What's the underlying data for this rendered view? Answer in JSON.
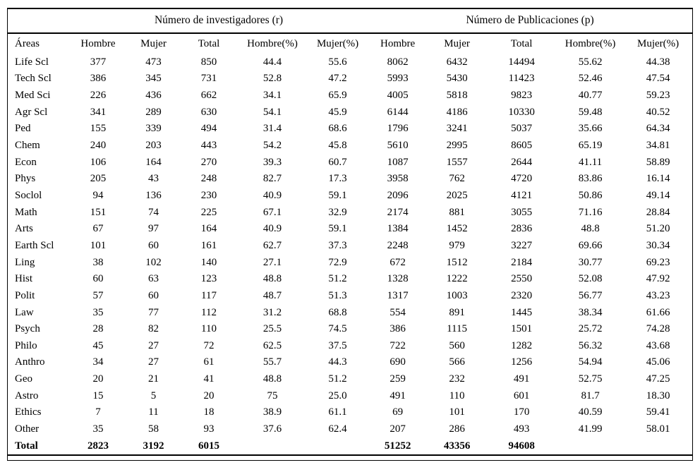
{
  "table": {
    "group_headers": {
      "investigadores": "Número de investigadores (r)",
      "publicaciones": "Número de Publicaciones (p)"
    },
    "columns": {
      "area": "Áreas",
      "r_hombre": "Hombre",
      "r_mujer": "Mujer",
      "r_total": "Total",
      "r_hombre_pct": "Hombre(%)",
      "r_mujer_pct": "Mujer(%)",
      "p_hombre": "Hombre",
      "p_mujer": "Mujer",
      "p_total": "Total",
      "p_hombre_pct": "Hombre(%)",
      "p_mujer_pct": "Mujer(%)"
    },
    "rows": [
      {
        "area": "Life Scl",
        "cells": [
          "377",
          "473",
          "850",
          "44.4",
          "55.6",
          "8062",
          "6432",
          "14494",
          "55.62",
          "44.38"
        ],
        "bold": false
      },
      {
        "area": "Tech Scl",
        "cells": [
          "386",
          "345",
          "731",
          "52.8",
          "47.2",
          "5993",
          "5430",
          "11423",
          "52.46",
          "47.54"
        ],
        "bold": false
      },
      {
        "area": "Med Sci",
        "cells": [
          "226",
          "436",
          "662",
          "34.1",
          "65.9",
          "4005",
          "5818",
          "9823",
          "40.77",
          "59.23"
        ],
        "bold": false
      },
      {
        "area": "Agr Scl",
        "cells": [
          "341",
          "289",
          "630",
          "54.1",
          "45.9",
          "6144",
          "4186",
          "10330",
          "59.48",
          "40.52"
        ],
        "bold": false
      },
      {
        "area": "Ped",
        "cells": [
          "155",
          "339",
          "494",
          "31.4",
          "68.6",
          "1796",
          "3241",
          "5037",
          "35.66",
          "64.34"
        ],
        "bold": false
      },
      {
        "area": "Chem",
        "cells": [
          "240",
          "203",
          "443",
          "54.2",
          "45.8",
          "5610",
          "2995",
          "8605",
          "65.19",
          "34.81"
        ],
        "bold": false
      },
      {
        "area": "Econ",
        "cells": [
          "106",
          "164",
          "270",
          "39.3",
          "60.7",
          "1087",
          "1557",
          "2644",
          "41.11",
          "58.89"
        ],
        "bold": false
      },
      {
        "area": "Phys",
        "cells": [
          "205",
          "43",
          "248",
          "82.7",
          "17.3",
          "3958",
          "762",
          "4720",
          "83.86",
          "16.14"
        ],
        "bold": false
      },
      {
        "area": "Soclol",
        "cells": [
          "94",
          "136",
          "230",
          "40.9",
          "59.1",
          "2096",
          "2025",
          "4121",
          "50.86",
          "49.14"
        ],
        "bold": false
      },
      {
        "area": "Math",
        "cells": [
          "151",
          "74",
          "225",
          "67.1",
          "32.9",
          "2174",
          "881",
          "3055",
          "71.16",
          "28.84"
        ],
        "bold": false
      },
      {
        "area": "Arts",
        "cells": [
          "67",
          "97",
          "164",
          "40.9",
          "59.1",
          "1384",
          "1452",
          "2836",
          "48.8",
          "51.20"
        ],
        "bold": false
      },
      {
        "area": "Earth Scl",
        "cells": [
          "101",
          "60",
          "161",
          "62.7",
          "37.3",
          "2248",
          "979",
          "3227",
          "69.66",
          "30.34"
        ],
        "bold": false
      },
      {
        "area": "Ling",
        "cells": [
          "38",
          "102",
          "140",
          "27.1",
          "72.9",
          "672",
          "1512",
          "2184",
          "30.77",
          "69.23"
        ],
        "bold": false
      },
      {
        "area": "Hist",
        "cells": [
          "60",
          "63",
          "123",
          "48.8",
          "51.2",
          "1328",
          "1222",
          "2550",
          "52.08",
          "47.92"
        ],
        "bold": false
      },
      {
        "area": "Polit",
        "cells": [
          "57",
          "60",
          "117",
          "48.7",
          "51.3",
          "1317",
          "1003",
          "2320",
          "56.77",
          "43.23"
        ],
        "bold": false
      },
      {
        "area": "Law",
        "cells": [
          "35",
          "77",
          "112",
          "31.2",
          "68.8",
          "554",
          "891",
          "1445",
          "38.34",
          "61.66"
        ],
        "bold": false
      },
      {
        "area": "Psych",
        "cells": [
          "28",
          "82",
          "110",
          "25.5",
          "74.5",
          "386",
          "1115",
          "1501",
          "25.72",
          "74.28"
        ],
        "bold": false
      },
      {
        "area": "Philo",
        "cells": [
          "45",
          "27",
          "72",
          "62.5",
          "37.5",
          "722",
          "560",
          "1282",
          "56.32",
          "43.68"
        ],
        "bold": false
      },
      {
        "area": "Anthro",
        "cells": [
          "34",
          "27",
          "61",
          "55.7",
          "44.3",
          "690",
          "566",
          "1256",
          "54.94",
          "45.06"
        ],
        "bold": false
      },
      {
        "area": "Geo",
        "cells": [
          "20",
          "21",
          "41",
          "48.8",
          "51.2",
          "259",
          "232",
          "491",
          "52.75",
          "47.25"
        ],
        "bold": false
      },
      {
        "area": "Astro",
        "cells": [
          "15",
          "5",
          "20",
          "75",
          "25.0",
          "491",
          "110",
          "601",
          "81.7",
          "18.30"
        ],
        "bold": false
      },
      {
        "area": "Ethics",
        "cells": [
          "7",
          "11",
          "18",
          "38.9",
          "61.1",
          "69",
          "101",
          "170",
          "40.59",
          "59.41"
        ],
        "bold": false
      },
      {
        "area": "Other",
        "cells": [
          "35",
          "58",
          "93",
          "37.6",
          "62.4",
          "207",
          "286",
          "493",
          "41.99",
          "58.01"
        ],
        "bold": false
      },
      {
        "area": "Total",
        "cells": [
          "2823",
          "3192",
          "6015",
          "",
          "",
          "51252",
          "43356",
          "94608",
          "",
          ""
        ],
        "bold": true
      }
    ]
  }
}
